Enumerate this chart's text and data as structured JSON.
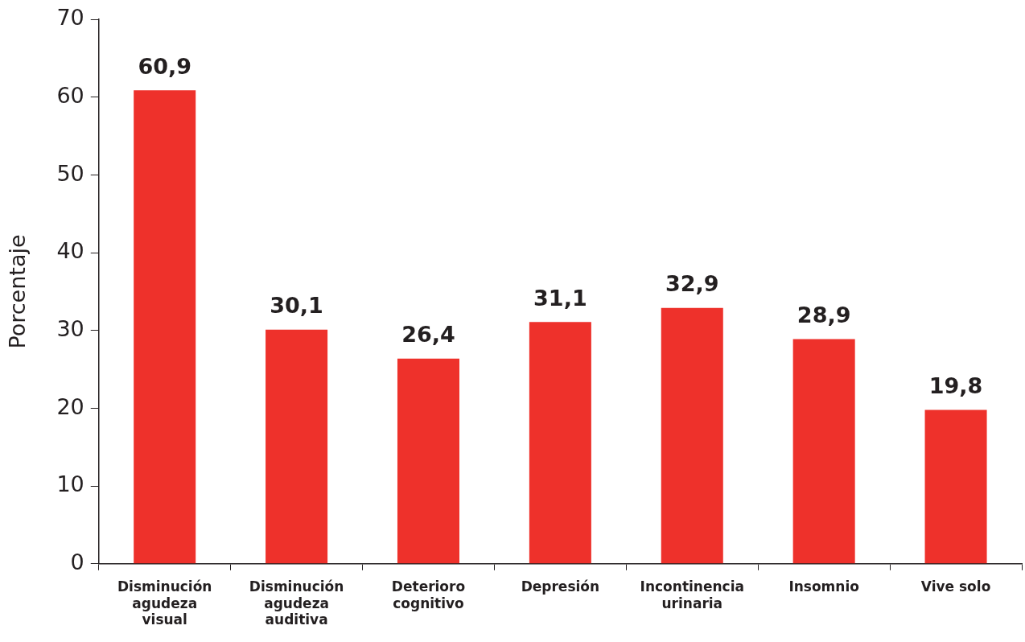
{
  "chart_data": {
    "type": "bar",
    "ylabel": "Porcentaje",
    "categories": [
      "Disminución agudeza visual",
      "Disminución agudeza auditiva",
      "Deterioro cognitivo",
      "Depresión",
      "Incontinencia urinaria",
      "Insomnio",
      "Vive solo"
    ],
    "values": [
      60.9,
      30.1,
      26.4,
      31.1,
      32.9,
      28.9,
      19.8
    ],
    "color": "#ee312b",
    "ylim": [
      0,
      70
    ],
    "yticks": [
      0,
      10,
      20,
      30,
      40,
      50,
      60,
      70
    ],
    "value_labels": [
      "60,9",
      "30,1",
      "26,4",
      "31,1",
      "32,9",
      "28,9",
      "19,8"
    ],
    "grid": false,
    "legend": false
  }
}
